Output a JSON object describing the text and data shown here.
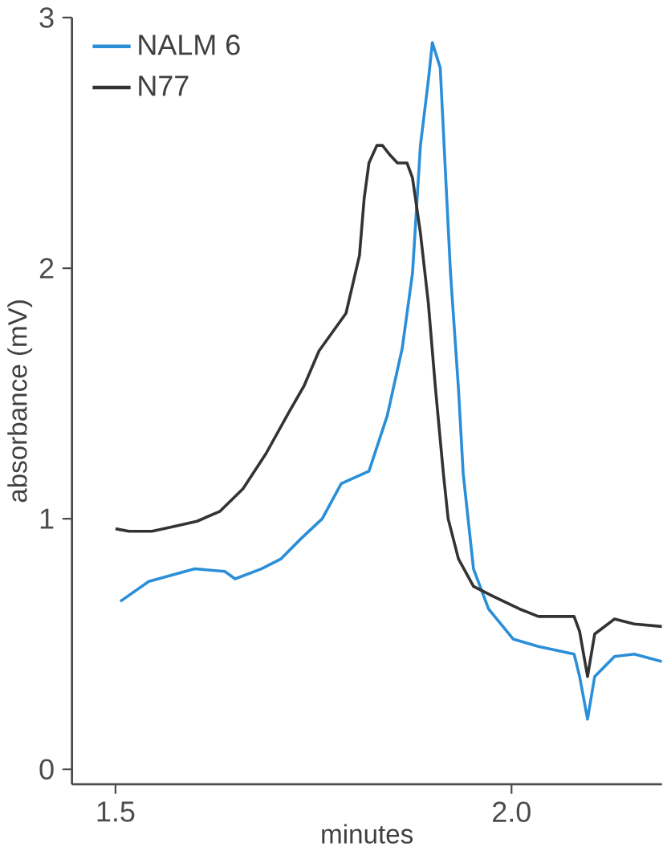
{
  "chart_data": {
    "type": "line",
    "xlabel": "minutes",
    "ylabel": "absorbance (mV)",
    "xlim": [
      1.445,
      2.19
    ],
    "ylim": [
      -0.06,
      3.0
    ],
    "xticks": [
      1.5,
      {
        "value": 2,
        "label": "2.0"
      }
    ],
    "yticks": [
      0,
      1,
      2,
      3
    ],
    "grid": false,
    "legend": "top left",
    "line_style": "solid",
    "marker": "none",
    "series": [
      {
        "name": "NALM 6",
        "color": "#2a8fd8",
        "x": [
          1.506,
          1.542,
          1.6,
          1.638,
          1.651,
          1.684,
          1.709,
          1.734,
          1.761,
          1.785,
          1.82,
          1.843,
          1.862,
          1.875,
          1.885,
          1.895,
          1.9,
          1.91,
          1.916,
          1.923,
          1.933,
          1.939,
          1.952,
          1.971,
          2.002,
          2.034,
          2.079,
          2.086,
          2.096,
          2.105,
          2.13,
          2.155,
          2.19
        ],
        "values": [
          0.67,
          0.75,
          0.8,
          0.79,
          0.76,
          0.8,
          0.84,
          0.92,
          1.0,
          1.14,
          1.19,
          1.41,
          1.68,
          1.98,
          2.49,
          2.75,
          2.9,
          2.8,
          2.42,
          1.98,
          1.52,
          1.18,
          0.8,
          0.64,
          0.52,
          0.49,
          0.46,
          0.37,
          0.2,
          0.37,
          0.45,
          0.46,
          0.43
        ]
      },
      {
        "name": "N77",
        "color": "#333333",
        "x": [
          1.5,
          1.517,
          1.546,
          1.575,
          1.603,
          1.632,
          1.661,
          1.69,
          1.718,
          1.738,
          1.757,
          1.791,
          1.808,
          1.814,
          1.82,
          1.83,
          1.837,
          1.847,
          1.856,
          1.868,
          1.875,
          1.885,
          1.895,
          1.904,
          1.914,
          1.92,
          1.933,
          1.952,
          1.977,
          2.01,
          2.034,
          2.079,
          2.086,
          2.096,
          2.105,
          2.13,
          2.155,
          2.19
        ],
        "values": [
          0.96,
          0.95,
          0.95,
          0.97,
          0.99,
          1.03,
          1.12,
          1.26,
          1.42,
          1.53,
          1.67,
          1.82,
          2.05,
          2.28,
          2.42,
          2.49,
          2.49,
          2.45,
          2.42,
          2.42,
          2.36,
          2.14,
          1.86,
          1.52,
          1.18,
          1.0,
          0.84,
          0.73,
          0.69,
          0.64,
          0.61,
          0.61,
          0.55,
          0.37,
          0.54,
          0.6,
          0.58,
          0.57
        ]
      }
    ]
  }
}
